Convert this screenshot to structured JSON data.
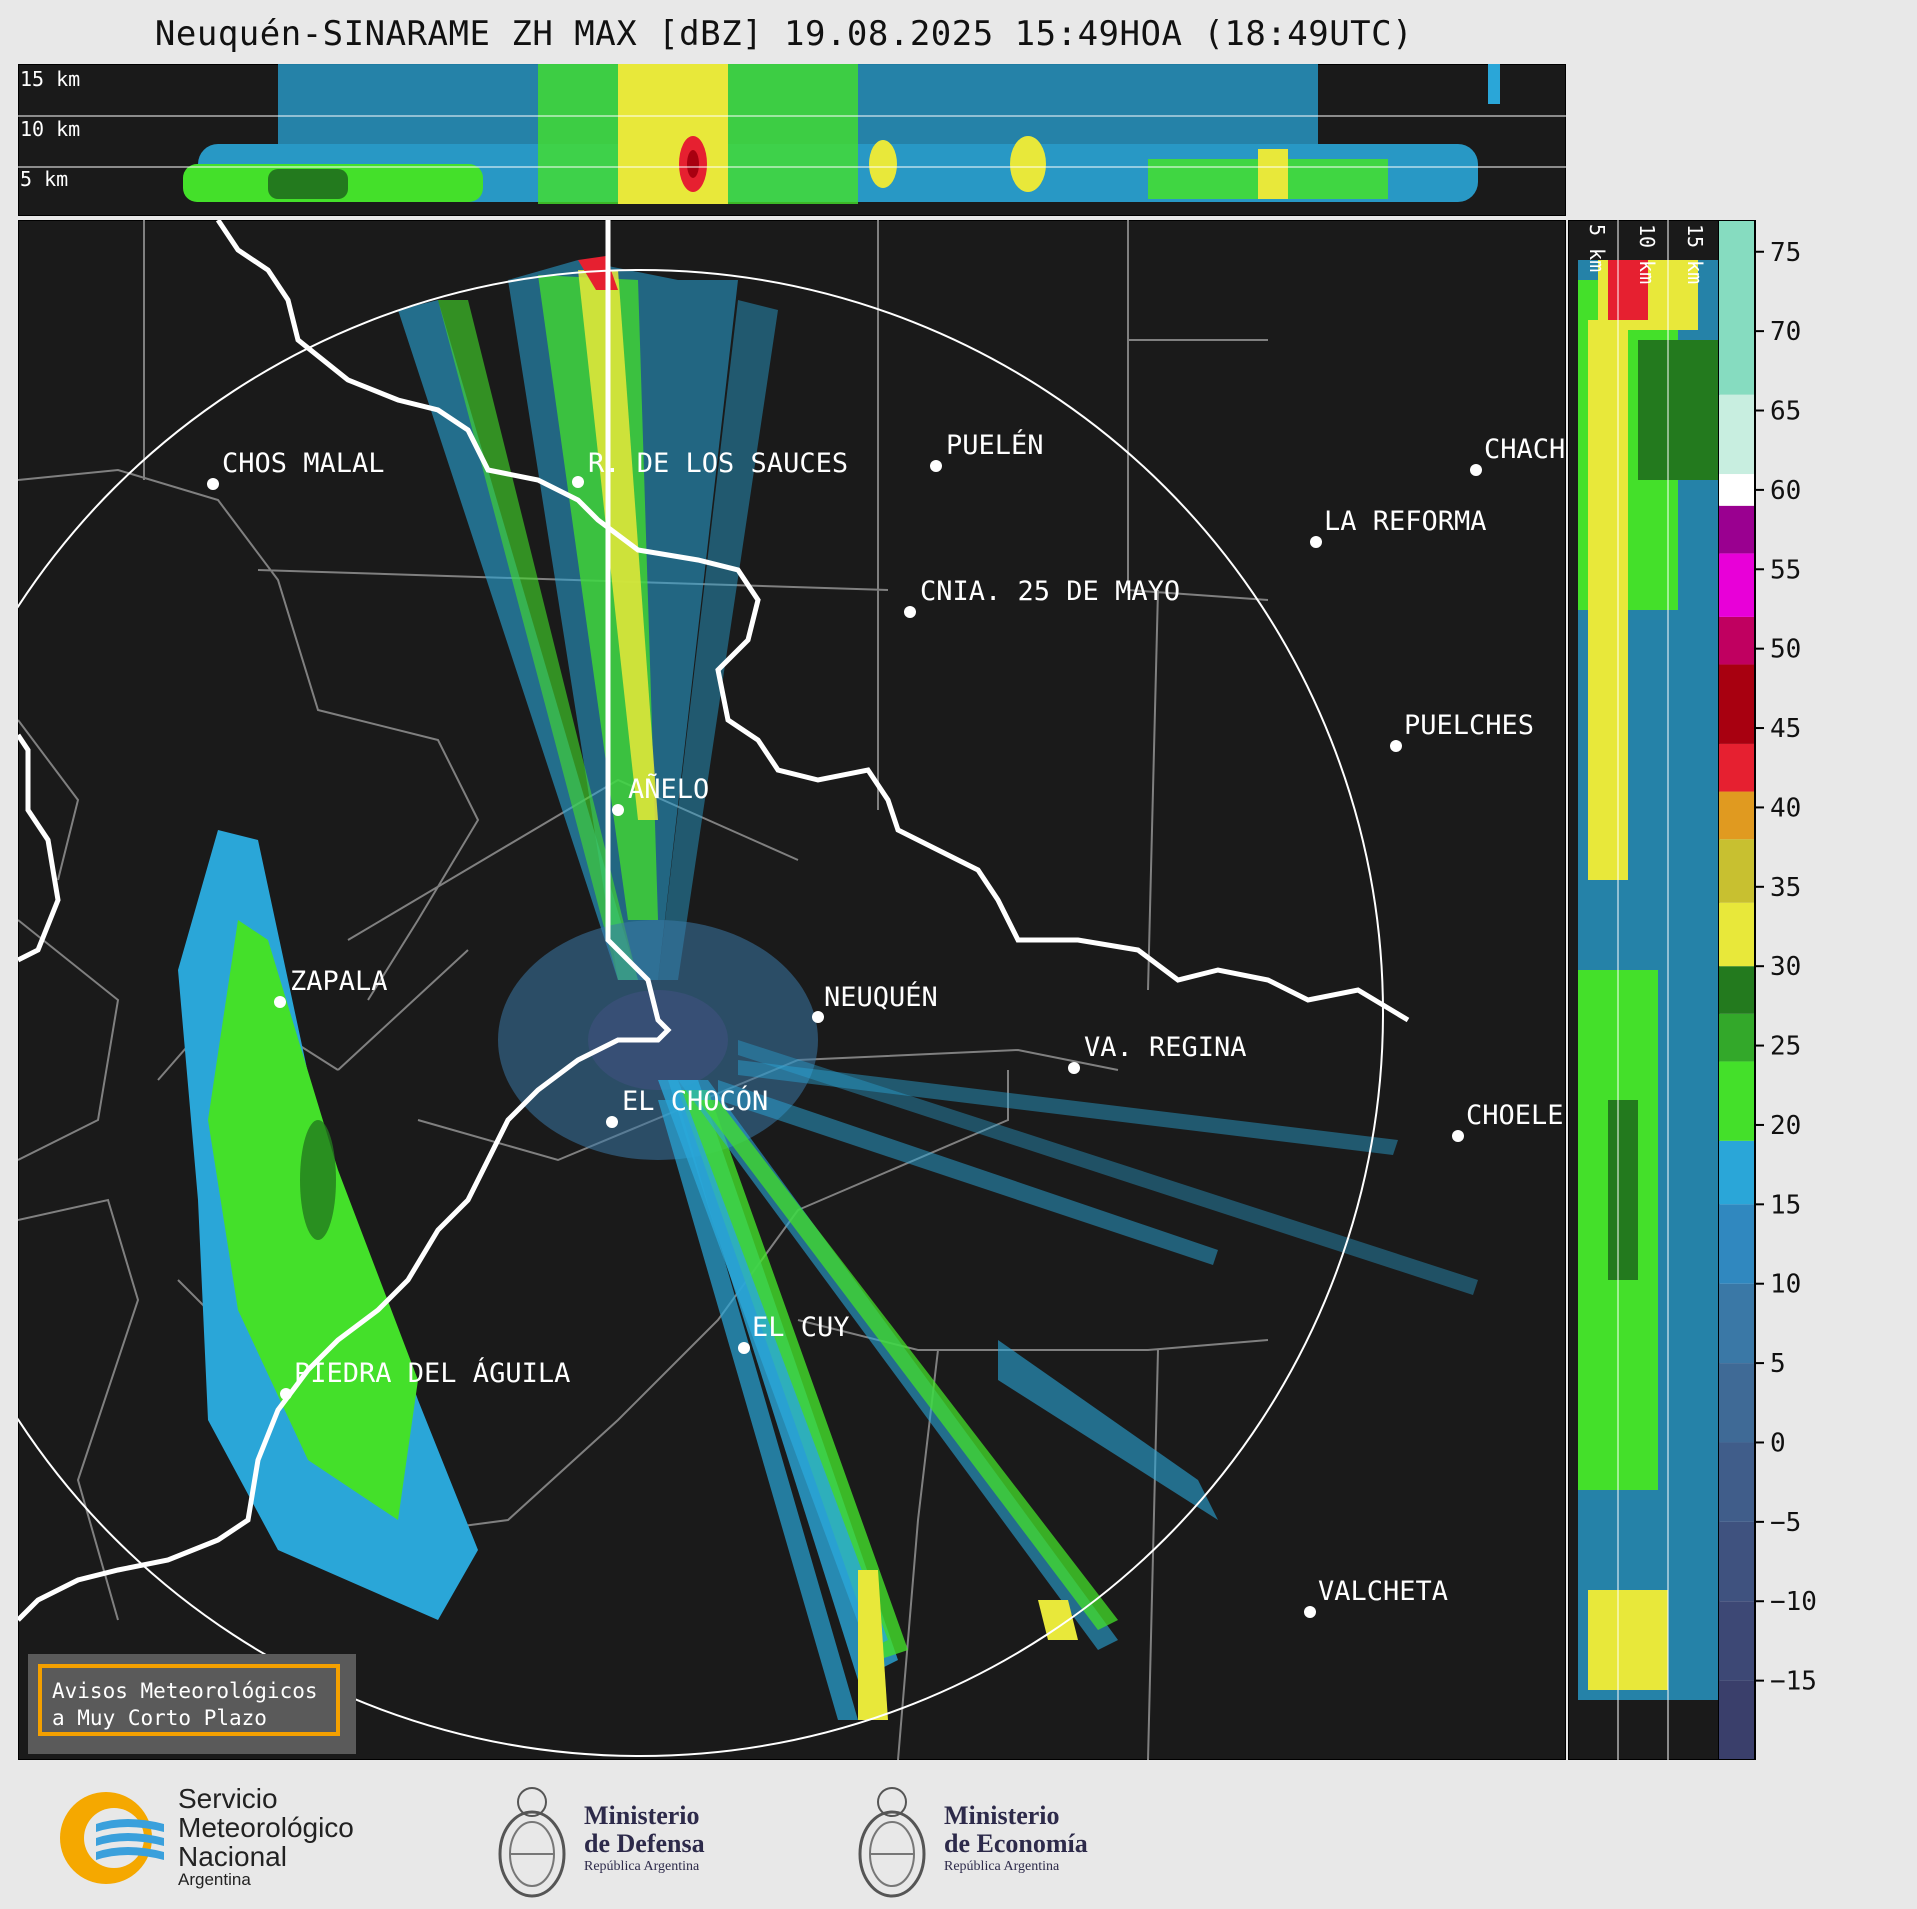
{
  "title": "Neuquén-SINARAME ZH MAX [dBZ] 19.08.2025 15:49HOA (18:49UTC)",
  "top_panel": {
    "height_labels": [
      "15 km",
      "10 km",
      "5 km"
    ]
  },
  "right_panel": {
    "height_labels": [
      "5 km",
      "10 km",
      "15 km"
    ]
  },
  "cities": [
    {
      "name": "CHOS MALAL"
    },
    {
      "name": "R. DE LOS SAUCES"
    },
    {
      "name": "PUELÉN"
    },
    {
      "name": "CHACH"
    },
    {
      "name": "LA REFORMA"
    },
    {
      "name": "CNIA. 25 DE MAYO"
    },
    {
      "name": "PUELCHES"
    },
    {
      "name": "AÑELO"
    },
    {
      "name": "ZAPALA"
    },
    {
      "name": "NEUQUÉN"
    },
    {
      "name": "VA. REGINA"
    },
    {
      "name": "EL CHOCÓN"
    },
    {
      "name": "CHOELE"
    },
    {
      "name": "EL CUY"
    },
    {
      "name": "PIEDRA DEL ÁGUILA"
    },
    {
      "name": "VALCHETA"
    }
  ],
  "colorbar": {
    "unit": "dBZ",
    "range": [
      -20,
      77
    ],
    "ticks": [
      "75",
      "70",
      "65",
      "60",
      "55",
      "50",
      "45",
      "40",
      "35",
      "30",
      "25",
      "20",
      "15",
      "10",
      "5",
      "0",
      "−5",
      "−10",
      "−15"
    ],
    "bands": [
      {
        "from": -20,
        "to": -15,
        "color": "#3a3f6b"
      },
      {
        "from": -15,
        "to": -10,
        "color": "#3d4875"
      },
      {
        "from": -10,
        "to": -5,
        "color": "#3f527f"
      },
      {
        "from": -5,
        "to": 0,
        "color": "#405d8a"
      },
      {
        "from": 0,
        "to": 5,
        "color": "#3f6a96"
      },
      {
        "from": 5,
        "to": 10,
        "color": "#3a78a6"
      },
      {
        "from": 10,
        "to": 15,
        "color": "#3088bf"
      },
      {
        "from": 15,
        "to": 19,
        "color": "#2aa6d8"
      },
      {
        "from": 19,
        "to": 24,
        "color": "#44e02a"
      },
      {
        "from": 24,
        "to": 27,
        "color": "#33a82a"
      },
      {
        "from": 27,
        "to": 30,
        "color": "#237a1e"
      },
      {
        "from": 30,
        "to": 34,
        "color": "#e8e83a"
      },
      {
        "from": 34,
        "to": 38,
        "color": "#c8c030"
      },
      {
        "from": 38,
        "to": 41,
        "color": "#e09a20"
      },
      {
        "from": 41,
        "to": 44,
        "color": "#e62030"
      },
      {
        "from": 44,
        "to": 49,
        "color": "#a80010"
      },
      {
        "from": 49,
        "to": 52,
        "color": "#c00060"
      },
      {
        "from": 52,
        "to": 56,
        "color": "#e800d8"
      },
      {
        "from": 56,
        "to": 59,
        "color": "#9a0090"
      },
      {
        "from": 59,
        "to": 61,
        "color": "#ffffff"
      },
      {
        "from": 61,
        "to": 66,
        "color": "#c8eee0"
      },
      {
        "from": 66,
        "to": 77,
        "color": "#86dcc0"
      }
    ]
  },
  "warning": {
    "line1": "Avisos Meteorológicos",
    "line2": "a Muy Corto Plazo"
  },
  "logos": {
    "smn": {
      "line1": "Servicio",
      "line2": "Meteorológico",
      "line3": "Nacional",
      "line4": "Argentina"
    },
    "defensa": {
      "line1": "Ministerio",
      "line2": "de Defensa",
      "line3": "República Argentina"
    },
    "economia": {
      "line1": "Ministerio",
      "line2": "de Economía",
      "line3": "República Argentina"
    }
  },
  "colors": {
    "background": "#1a1a1a",
    "page": "#e8e8e8",
    "boundary": "#ffffff",
    "province_lines": "#808080",
    "warning_border": "#f4a000"
  }
}
